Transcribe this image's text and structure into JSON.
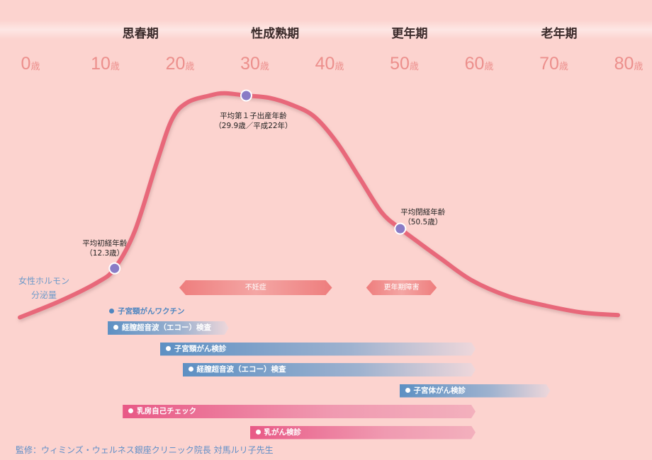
{
  "chart_data": {
    "type": "line",
    "title": "",
    "xlabel": "",
    "ylabel": "女性ホルモン分泌量",
    "ylabel_lines": [
      "女性ホルモン",
      "分泌量"
    ],
    "xlim": [
      0,
      80
    ],
    "x_ticks": [
      {
        "num": "0",
        "unit": "歳"
      },
      {
        "num": "10",
        "unit": "歳"
      },
      {
        "num": "20",
        "unit": "歳"
      },
      {
        "num": "30",
        "unit": "歳"
      },
      {
        "num": "40",
        "unit": "歳"
      },
      {
        "num": "50",
        "unit": "歳"
      },
      {
        "num": "60",
        "unit": "歳"
      },
      {
        "num": "70",
        "unit": "歳"
      },
      {
        "num": "80",
        "unit": "歳"
      }
    ],
    "phases": [
      {
        "label": "思春期",
        "age": 15
      },
      {
        "label": "性成熟期",
        "age": 33
      },
      {
        "label": "更年期",
        "age": 51
      },
      {
        "label": "老年期",
        "age": 71
      }
    ],
    "series": [
      {
        "x": [
          0,
          5,
          10,
          12.3,
          15,
          18,
          20,
          22,
          25,
          27,
          29.9,
          33,
          36,
          39,
          42,
          45,
          48,
          50.5,
          53,
          56,
          60,
          65,
          70,
          75,
          80
        ],
        "y": [
          0.05,
          0.12,
          0.2,
          0.26,
          0.42,
          0.72,
          0.9,
          0.97,
          1.0,
          1.01,
          1.0,
          0.99,
          0.96,
          0.91,
          0.8,
          0.65,
          0.5,
          0.43,
          0.37,
          0.3,
          0.21,
          0.14,
          0.1,
          0.07,
          0.06
        ],
        "color": "#e8677a"
      }
    ],
    "markers": [
      {
        "x": 12.3,
        "y": 0.26,
        "lines": [
          "平均初経年齢",
          "（12.3歳）"
        ]
      },
      {
        "x": 29.9,
        "y": 1.0,
        "lines": [
          "平均第１子出産年齢",
          "（29.9歳／平成22年）"
        ]
      },
      {
        "x": 50.5,
        "y": 0.43,
        "lines": [
          "平均閉経年齢",
          "（50.5歳）"
        ]
      }
    ],
    "conditions": [
      {
        "label": "不妊症",
        "start": 20,
        "end": 41
      },
      {
        "label": "更年期障害",
        "start": 45,
        "end": 55
      }
    ],
    "checkups": [
      {
        "label": "子宮頸がんワクチン",
        "start": 11,
        "end": 11,
        "style": "text"
      },
      {
        "label": "経膣超音波（エコー）検査",
        "start": 11,
        "end": 27,
        "style": "blue"
      },
      {
        "label": "子宮頸がん検診",
        "start": 18,
        "end": 60,
        "style": "blue"
      },
      {
        "label": "経膣超音波（エコー）検査",
        "start": 21,
        "end": 60,
        "style": "blue"
      },
      {
        "label": "子宮体がん検診",
        "start": 50,
        "end": 70,
        "style": "blue"
      },
      {
        "label": "乳房自己チェック",
        "start": 13,
        "end": 60,
        "style": "pink"
      },
      {
        "label": "乳がん検診",
        "start": 30,
        "end": 60,
        "style": "pink"
      }
    ]
  },
  "footer": "監修：ウィミンズ・ウェルネス銀座クリニック院長 対馬ルリ子先生",
  "colors": {
    "background": "#fcd3cf",
    "curve": "#e8677a",
    "marker": "#8a7cc6",
    "age_text": "#ec8f8c"
  }
}
